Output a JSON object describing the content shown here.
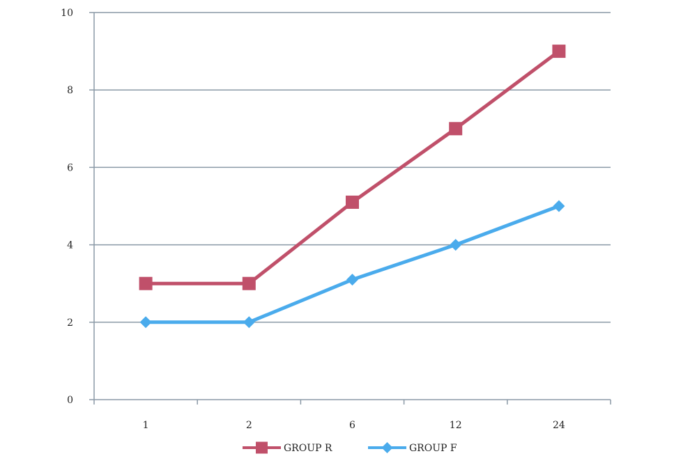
{
  "chart_data": {
    "type": "line",
    "categories": [
      "1",
      "2",
      "6",
      "12",
      "24"
    ],
    "ylim": [
      0,
      10
    ],
    "yticks": [
      "0",
      "2",
      "4",
      "6",
      "8",
      "10"
    ],
    "grid": true,
    "legend_position": "bottom",
    "series": [
      {
        "name": "GROUP R",
        "values": [
          3,
          3,
          5.1,
          7,
          9
        ],
        "color": "#c0506a",
        "marker": "square"
      },
      {
        "name": "GROUP F",
        "values": [
          2,
          2,
          3.1,
          4,
          5
        ],
        "color": "#4aabec",
        "marker": "diamond"
      }
    ]
  }
}
